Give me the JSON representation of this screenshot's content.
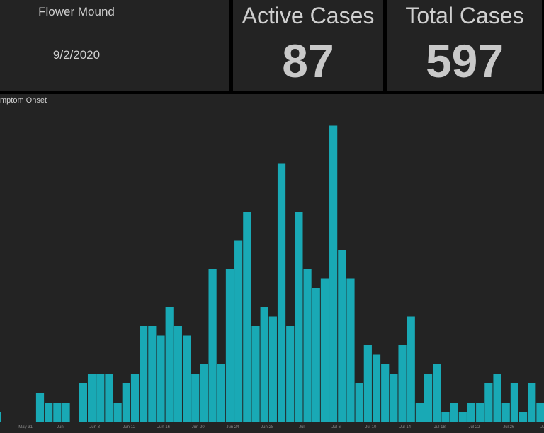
{
  "header": {
    "location": "Flower Mound",
    "date": "9/2/2020"
  },
  "kpis": [
    {
      "label": "Active Cases",
      "value": 87
    },
    {
      "label": "Total Cases",
      "value": 597
    }
  ],
  "chart_data": {
    "type": "bar",
    "title": "mptom Onset",
    "color": "#19a9b5",
    "categories": [
      null,
      null,
      null,
      "May 31",
      null,
      null,
      null,
      "Jun",
      null,
      null,
      null,
      "Jun 8",
      null,
      null,
      null,
      "Jun 12",
      null,
      null,
      null,
      "Jun 16",
      null,
      null,
      null,
      "Jun 20",
      null,
      null,
      null,
      "Jun 24",
      null,
      null,
      null,
      "Jun 28",
      null,
      null,
      null,
      "Jul",
      null,
      null,
      null,
      "Jul 6",
      null,
      null,
      null,
      "Jul 10",
      null,
      null,
      null,
      "Jul 14",
      null,
      null,
      null,
      "Jul 18",
      null,
      null,
      null,
      "Jul 22",
      null,
      null,
      null,
      "Jul 26",
      null,
      null,
      null,
      "Jul"
    ],
    "values": [
      1,
      0,
      0,
      0,
      0,
      3,
      2,
      2,
      2,
      0,
      4,
      5,
      5,
      5,
      2,
      4,
      5,
      10,
      10,
      9,
      12,
      10,
      9,
      5,
      6,
      16,
      6,
      16,
      19,
      22,
      10,
      12,
      11,
      27,
      10,
      22,
      16,
      14,
      15,
      31,
      18,
      15,
      4,
      8,
      7,
      6,
      5,
      8,
      11,
      2,
      5,
      6,
      1,
      2,
      1,
      2,
      2,
      4,
      5,
      2,
      4,
      1,
      4,
      2
    ]
  }
}
